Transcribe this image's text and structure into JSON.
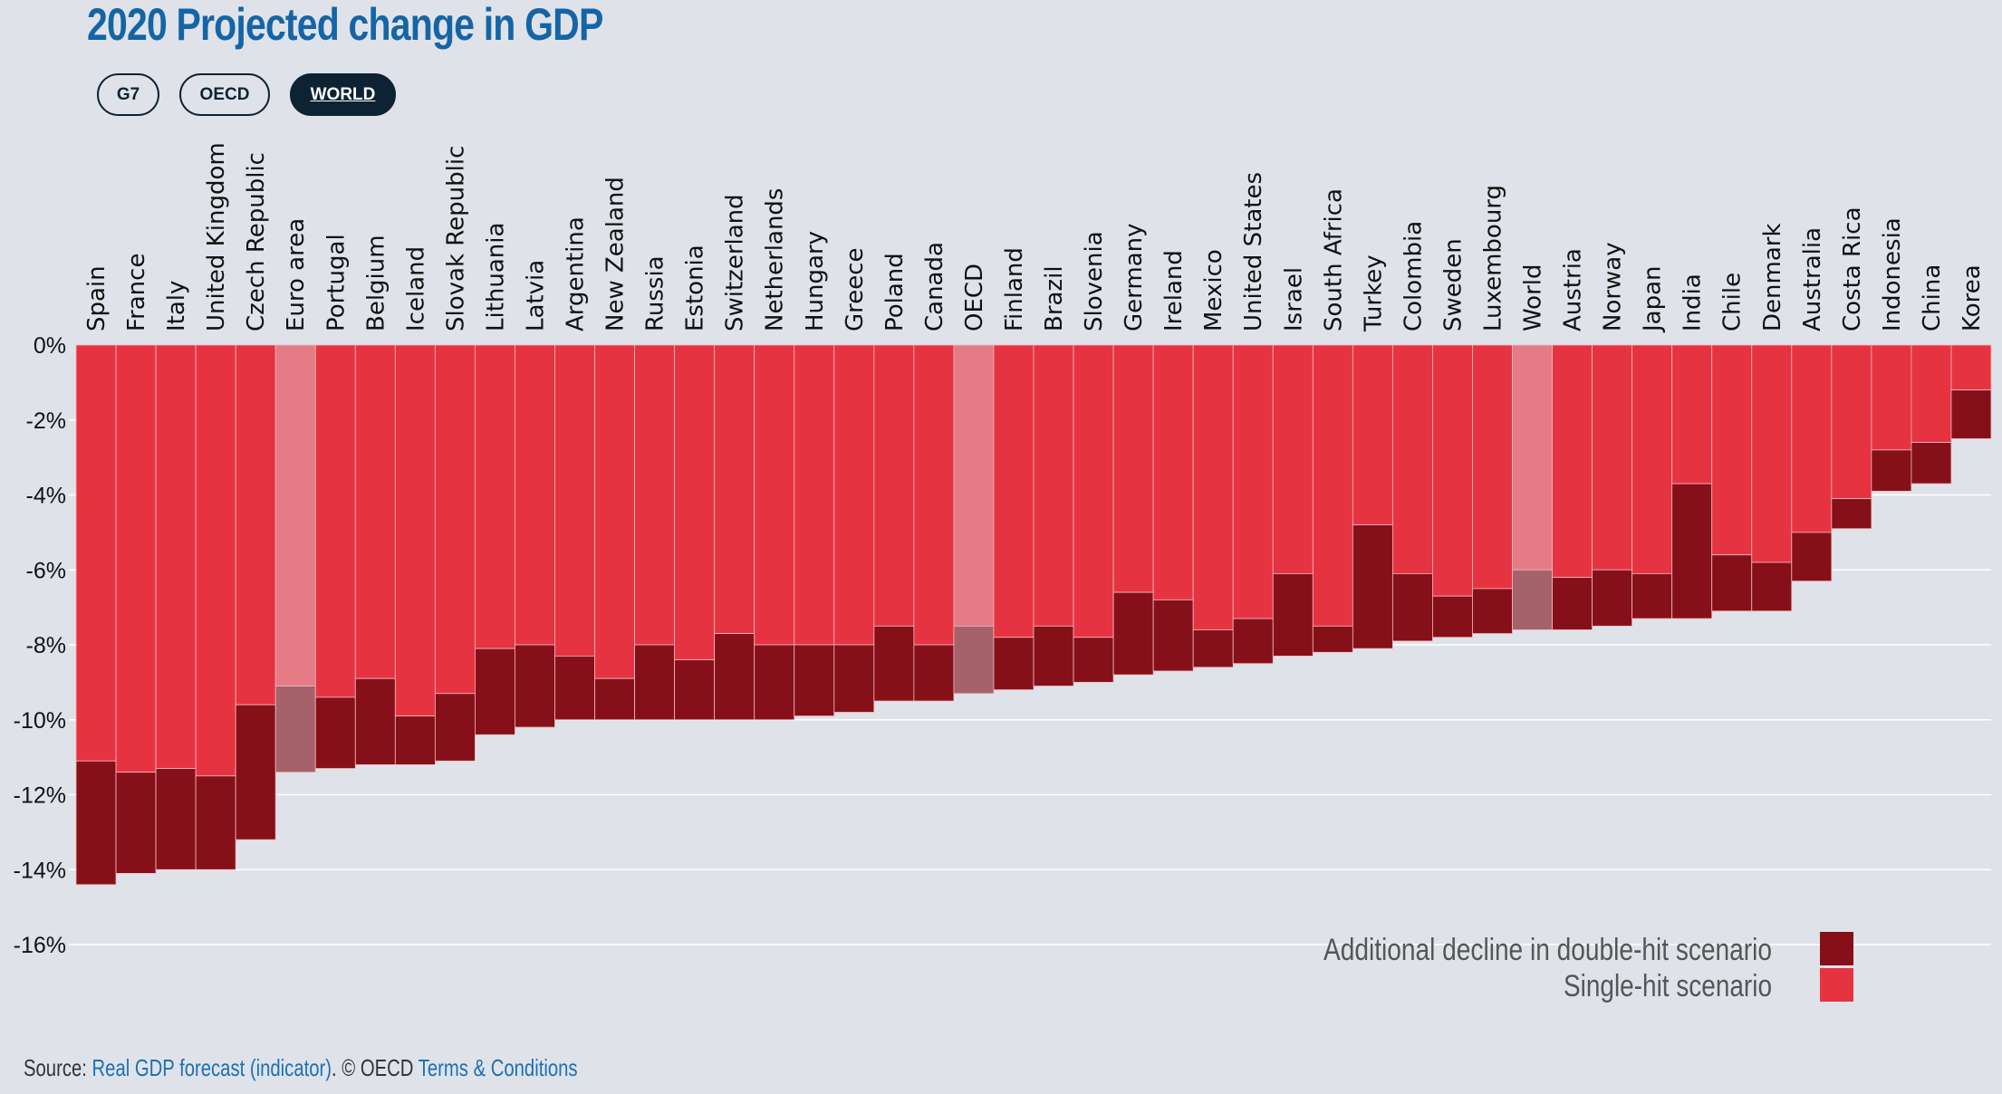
{
  "title": "2020 Projected change in GDP",
  "tabs": [
    {
      "label": "G7",
      "active": false
    },
    {
      "label": "OECD",
      "active": false
    },
    {
      "label": "WORLD",
      "active": true
    }
  ],
  "colors": {
    "single_hit": "#e63342",
    "double_hit": "#861019",
    "highlight_single": "#e57b85",
    "highlight_double": "#a5626a",
    "grid": "#ffffff",
    "background": "#dfe3e9"
  },
  "source": {
    "prefix": "Source: ",
    "link1": "Real GDP forecast (indicator)",
    "middle": ". © OECD ",
    "link2": "Terms & Conditions"
  },
  "chart_data": {
    "type": "bar",
    "stacked": true,
    "categories": [
      "Spain",
      "France",
      "Italy",
      "United Kingdom",
      "Czech Republic",
      "Euro area",
      "Portugal",
      "Belgium",
      "Iceland",
      "Slovak Republic",
      "Lithuania",
      "Latvia",
      "Argentina",
      "New Zealand",
      "Russia",
      "Estonia",
      "Switzerland",
      "Netherlands",
      "Hungary",
      "Greece",
      "Poland",
      "Canada",
      "OECD",
      "Finland",
      "Brazil",
      "Slovenia",
      "Germany",
      "Ireland",
      "Mexico",
      "United States",
      "Israel",
      "South Africa",
      "Turkey",
      "Colombia",
      "Sweden",
      "Luxembourg",
      "World",
      "Austria",
      "Norway",
      "Japan",
      "India",
      "Chile",
      "Denmark",
      "Australia",
      "Costa Rica",
      "Indonesia",
      "China",
      "Korea"
    ],
    "highlighted": [
      "Euro area",
      "OECD",
      "World"
    ],
    "series": [
      {
        "name": "Single-hit scenario",
        "values": [
          -11.1,
          -11.4,
          -11.3,
          -11.5,
          -9.6,
          -9.1,
          -9.4,
          -8.9,
          -9.9,
          -9.3,
          -8.1,
          -8.0,
          -8.3,
          -8.9,
          -8.0,
          -8.4,
          -7.7,
          -8.0,
          -8.0,
          -8.0,
          -7.5,
          -8.0,
          -7.5,
          -7.8,
          -7.5,
          -7.8,
          -6.6,
          -6.8,
          -7.6,
          -7.3,
          -6.1,
          -7.5,
          -4.8,
          -6.1,
          -6.7,
          -6.5,
          -6.0,
          -6.2,
          -6.0,
          -6.1,
          -3.7,
          -5.6,
          -5.8,
          -5.0,
          -4.1,
          -2.8,
          -2.6,
          -1.2
        ]
      },
      {
        "name": "Additional decline in double-hit scenario",
        "values": [
          -3.3,
          -2.7,
          -2.7,
          -2.5,
          -3.6,
          -2.3,
          -1.9,
          -2.3,
          -1.3,
          -1.8,
          -2.3,
          -2.2,
          -1.7,
          -1.1,
          -2.0,
          -1.6,
          -2.3,
          -2.0,
          -1.9,
          -1.8,
          -2.0,
          -1.5,
          -1.8,
          -1.4,
          -1.6,
          -1.2,
          -2.2,
          -1.9,
          -1.0,
          -1.2,
          -2.2,
          -0.7,
          -3.3,
          -1.8,
          -1.1,
          -1.2,
          -1.6,
          -1.4,
          -1.5,
          -1.2,
          -3.6,
          -1.5,
          -1.3,
          -1.3,
          -0.8,
          -1.1,
          -1.1,
          -1.3
        ]
      }
    ],
    "totals": [
      -14.4,
      -14.1,
      -14.0,
      -14.0,
      -13.2,
      -11.4,
      -11.3,
      -11.2,
      -11.2,
      -11.1,
      -10.4,
      -10.2,
      -10.0,
      -10.0,
      -10.0,
      -10.0,
      -10.0,
      -10.0,
      -9.9,
      -9.8,
      -9.5,
      -9.5,
      -9.3,
      -9.2,
      -9.1,
      -9.0,
      -8.8,
      -8.7,
      -8.6,
      -8.5,
      -8.3,
      -8.2,
      -8.1,
      -7.9,
      -7.8,
      -7.7,
      -7.6,
      -7.6,
      -7.5,
      -7.3,
      -7.3,
      -7.1,
      -7.1,
      -6.3,
      -4.9,
      -3.9,
      -3.7,
      -2.5
    ],
    "ylim": [
      -16,
      0
    ],
    "yticks": [
      0,
      -2,
      -4,
      -6,
      -8,
      -10,
      -12,
      -14,
      -16
    ],
    "ytick_labels": [
      "0%",
      "-2%",
      "-4%",
      "-6%",
      "-8%",
      "-10%",
      "-12%",
      "-14%",
      "-16%"
    ],
    "grid": true,
    "legend": {
      "placement": "bottom-right",
      "entries": [
        "Additional decline in double-hit scenario",
        "Single-hit scenario"
      ]
    }
  }
}
